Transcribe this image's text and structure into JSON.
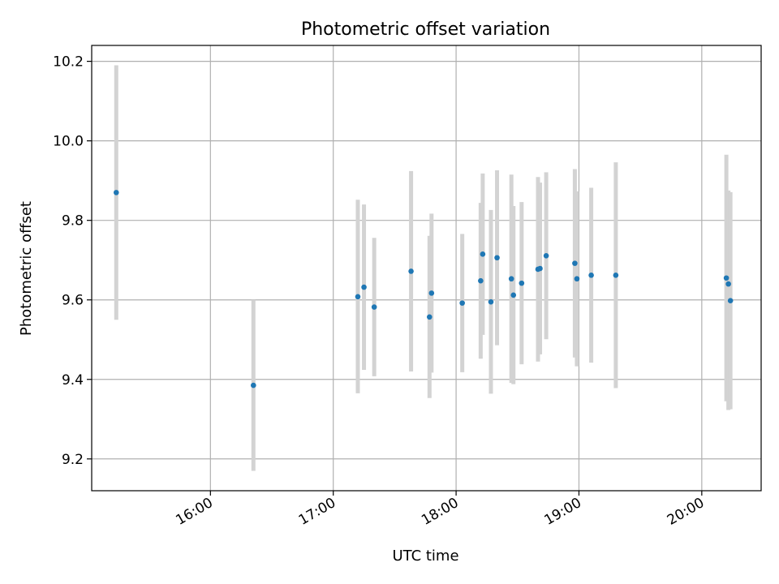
{
  "chart_data": {
    "type": "scatter",
    "title": "Photometric offset variation",
    "xlabel": "UTC time",
    "ylabel": "Photometric offset",
    "x_unit": "UTC hours",
    "xlim": [
      "15:02",
      "20:29"
    ],
    "ylim": [
      9.12,
      10.24
    ],
    "grid": true,
    "x_ticks": [
      "16:00",
      "17:00",
      "18:00",
      "19:00",
      "20:00"
    ],
    "y_ticks": [
      "9.2",
      "9.4",
      "9.6",
      "9.8",
      "10.0",
      "10.2"
    ],
    "colors": {
      "point": "#1f77b4",
      "errorbar": "#d3d3d3",
      "grid": "#b0b0b0"
    },
    "points": [
      {
        "x": "15:14",
        "y": 9.87,
        "lo": 9.55,
        "hi": 10.19
      },
      {
        "x": "16:21",
        "y": 9.385,
        "lo": 9.17,
        "hi": 9.6
      },
      {
        "x": "17:12",
        "y": 9.608,
        "lo": 9.365,
        "hi": 9.852
      },
      {
        "x": "17:15",
        "y": 9.632,
        "lo": 9.424,
        "hi": 9.84
      },
      {
        "x": "17:20",
        "y": 9.582,
        "lo": 9.408,
        "hi": 9.756
      },
      {
        "x": "17:38",
        "y": 9.672,
        "lo": 9.42,
        "hi": 9.924
      },
      {
        "x": "17:47",
        "y": 9.557,
        "lo": 9.353,
        "hi": 9.761
      },
      {
        "x": "17:48",
        "y": 9.617,
        "lo": 9.417,
        "hi": 9.817
      },
      {
        "x": "18:03",
        "y": 9.592,
        "lo": 9.418,
        "hi": 9.766
      },
      {
        "x": "18:12",
        "y": 9.648,
        "lo": 9.452,
        "hi": 9.844
      },
      {
        "x": "18:13",
        "y": 9.715,
        "lo": 9.512,
        "hi": 9.918
      },
      {
        "x": "18:17",
        "y": 9.595,
        "lo": 9.364,
        "hi": 9.826
      },
      {
        "x": "18:20",
        "y": 9.706,
        "lo": 9.486,
        "hi": 9.926
      },
      {
        "x": "18:27",
        "y": 9.653,
        "lo": 9.391,
        "hi": 9.915
      },
      {
        "x": "18:28",
        "y": 9.612,
        "lo": 9.388,
        "hi": 9.836
      },
      {
        "x": "18:32",
        "y": 9.642,
        "lo": 9.438,
        "hi": 9.846
      },
      {
        "x": "18:40",
        "y": 9.677,
        "lo": 9.445,
        "hi": 9.909
      },
      {
        "x": "18:41",
        "y": 9.679,
        "lo": 9.463,
        "hi": 9.895
      },
      {
        "x": "18:44",
        "y": 9.711,
        "lo": 9.501,
        "hi": 9.921
      },
      {
        "x": "18:58",
        "y": 9.692,
        "lo": 9.455,
        "hi": 9.929
      },
      {
        "x": "18:59",
        "y": 9.653,
        "lo": 9.433,
        "hi": 9.873
      },
      {
        "x": "19:06",
        "y": 9.662,
        "lo": 9.442,
        "hi": 9.882
      },
      {
        "x": "19:18",
        "y": 9.662,
        "lo": 9.378,
        "hi": 9.946
      },
      {
        "x": "20:12",
        "y": 9.655,
        "lo": 9.345,
        "hi": 9.965
      },
      {
        "x": "20:13",
        "y": 9.64,
        "lo": 9.323,
        "hi": 9.875
      },
      {
        "x": "20:14",
        "y": 9.598,
        "lo": 9.325,
        "hi": 9.871
      }
    ]
  }
}
